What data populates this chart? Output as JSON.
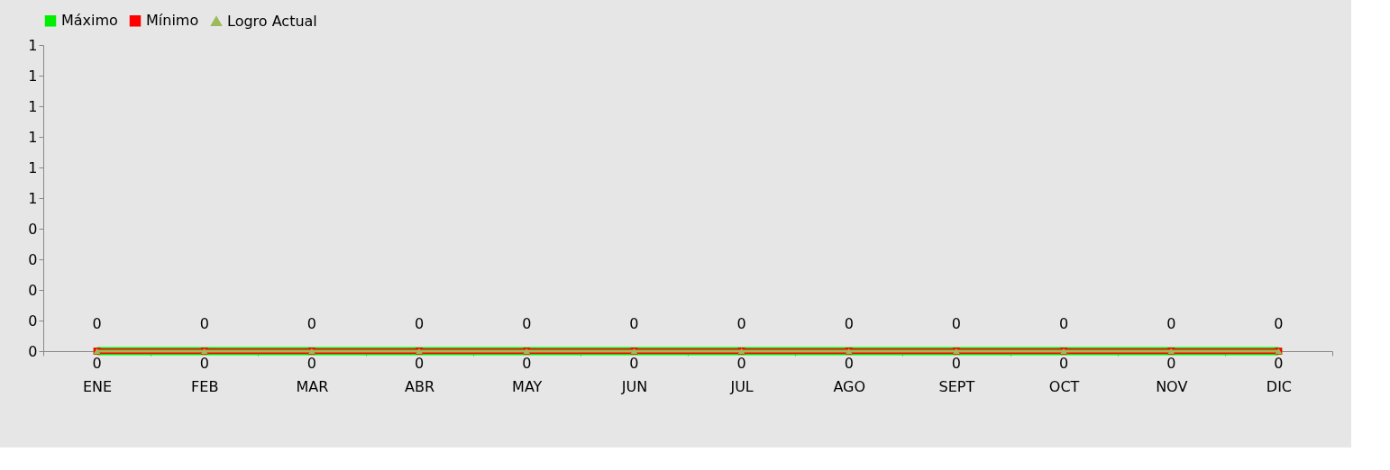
{
  "chart_data": {
    "type": "line",
    "categories": [
      "ENE",
      "FEB",
      "MAR",
      "ABR",
      "MAY",
      "JUN",
      "JUL",
      "AGO",
      "SEPT",
      "OCT",
      "NOV",
      "DIC"
    ],
    "series": [
      {
        "name": "Máximo",
        "color": "#00ee00",
        "marker": "square",
        "values": [
          0,
          0,
          0,
          0,
          0,
          0,
          0,
          0,
          0,
          0,
          0,
          0
        ],
        "value_labels": [
          "0",
          "0",
          "0",
          "0",
          "0",
          "0",
          "0",
          "0",
          "0",
          "0",
          "0",
          "0"
        ]
      },
      {
        "name": "Mínimo",
        "color": "#ff0000",
        "marker": "square",
        "values": [
          0,
          0,
          0,
          0,
          0,
          0,
          0,
          0,
          0,
          0,
          0,
          0
        ]
      },
      {
        "name": "Logro Actual",
        "color": "#9bbb59",
        "marker": "triangle",
        "values": [
          0,
          0,
          0,
          0,
          0,
          0,
          0,
          0,
          0,
          0,
          0,
          0
        ],
        "value_labels": [
          "0",
          "0",
          "0",
          "0",
          "0",
          "0",
          "0",
          "0",
          "0",
          "0",
          "0",
          "0"
        ]
      }
    ],
    "ylim": [
      0,
      1
    ],
    "yticks": [
      0,
      {
        "value": 0.1,
        "label": "0"
      },
      {
        "value": 0.2,
        "label": "0"
      },
      {
        "value": 0.3,
        "label": "0"
      },
      {
        "value": 0.4,
        "label": "0"
      },
      {
        "value": 0.5,
        "label": "1"
      },
      {
        "value": 0.6,
        "label": "1"
      },
      {
        "value": 0.7,
        "label": "1"
      },
      {
        "value": 0.8,
        "label": "1"
      },
      {
        "value": 0.9,
        "label": "1"
      },
      1
    ],
    "grid": false,
    "legend": "top",
    "line_style": "solid"
  }
}
